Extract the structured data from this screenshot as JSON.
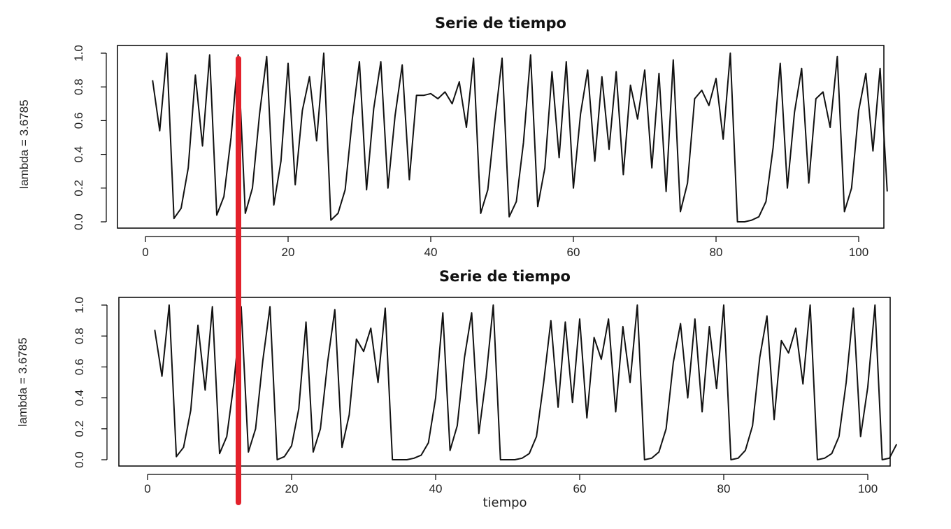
{
  "chart_data": [
    {
      "type": "line",
      "title": "Serie de tiempo",
      "xlabel": "",
      "ylabel": "lambda = 3.6785",
      "xlim": [
        1,
        104
      ],
      "ylim": [
        0,
        1
      ],
      "xticks": [
        0,
        20,
        40,
        60,
        80,
        100
      ],
      "xtick_labels": [
        "0",
        "20",
        "40",
        "60",
        "80",
        "100"
      ],
      "yticks": [
        0,
        0.2,
        0.4,
        0.6,
        0.8,
        1.0
      ],
      "ytick_labels": [
        "0.0",
        "0.2",
        "0.4",
        "0.6",
        "0.8",
        "1.0"
      ],
      "series": [
        {
          "x": [
            1,
            2,
            3,
            4,
            5,
            6,
            7,
            8,
            9,
            10,
            11,
            12,
            13,
            14,
            15,
            16,
            17,
            18,
            19,
            20,
            21,
            22,
            23,
            24,
            25,
            26,
            27,
            28,
            29,
            30,
            31,
            32,
            33,
            34,
            35,
            36,
            37,
            38,
            39,
            40,
            41,
            42,
            43,
            44,
            45,
            46,
            47,
            48,
            49,
            50,
            51,
            52,
            53,
            54,
            55,
            56,
            57,
            58,
            59,
            60,
            61,
            62,
            63,
            64,
            65,
            66,
            67,
            68,
            69,
            70,
            71,
            72,
            73,
            74,
            75,
            76,
            77,
            78,
            79,
            80,
            81,
            82,
            83,
            84,
            85,
            86,
            87,
            88,
            89,
            90,
            91,
            92,
            93,
            94,
            95,
            96,
            97,
            98,
            99,
            100,
            101,
            102,
            103,
            104
          ],
          "values": [
            0.84,
            0.54,
            1.0,
            0.02,
            0.08,
            0.32,
            0.87,
            0.45,
            0.99,
            0.04,
            0.15,
            0.5,
            0.99,
            0.05,
            0.2,
            0.64,
            0.98,
            0.1,
            0.36,
            0.94,
            0.22,
            0.66,
            0.86,
            0.48,
            1.0,
            0.01,
            0.05,
            0.19,
            0.61,
            0.95,
            0.19,
            0.67,
            0.95,
            0.2,
            0.63,
            0.93,
            0.25,
            0.75,
            0.75,
            0.76,
            0.73,
            0.77,
            0.7,
            0.83,
            0.56,
            0.97,
            0.05,
            0.19,
            0.6,
            0.97,
            0.03,
            0.12,
            0.47,
            0.99,
            0.09,
            0.32,
            0.89,
            0.38,
            0.95,
            0.2,
            0.64,
            0.9,
            0.36,
            0.86,
            0.43,
            0.89,
            0.28,
            0.81,
            0.61,
            0.9,
            0.32,
            0.88,
            0.18,
            0.96,
            0.06,
            0.23,
            0.73,
            0.78,
            0.69,
            0.85,
            0.49,
            1.0,
            0.0,
            0.0,
            0.01,
            0.03,
            0.12,
            0.44,
            0.94,
            0.2,
            0.65,
            0.91,
            0.23,
            0.73,
            0.77,
            0.56,
            0.98,
            0.06,
            0.2,
            0.66,
            0.88,
            0.42,
            0.91,
            0.18
          ]
        }
      ]
    },
    {
      "type": "line",
      "title": "Serie de tiempo",
      "xlabel": "tiempo",
      "ylabel": "lambda = 3.6785",
      "xlim": [
        1,
        104
      ],
      "ylim": [
        0,
        1
      ],
      "xticks": [
        0,
        20,
        40,
        60,
        80,
        100
      ],
      "xtick_labels": [
        "0",
        "20",
        "40",
        "60",
        "80",
        "100"
      ],
      "yticks": [
        0,
        0.2,
        0.4,
        0.6,
        0.8,
        1.0
      ],
      "ytick_labels": [
        "0.0",
        "0.2",
        "0.4",
        "0.6",
        "0.8",
        "1.0"
      ],
      "series": [
        {
          "x": [
            1,
            2,
            3,
            4,
            5,
            6,
            7,
            8,
            9,
            10,
            11,
            12,
            13,
            14,
            15,
            16,
            17,
            18,
            19,
            20,
            21,
            22,
            23,
            24,
            25,
            26,
            27,
            28,
            29,
            30,
            31,
            32,
            33,
            34,
            35,
            36,
            37,
            38,
            39,
            40,
            41,
            42,
            43,
            44,
            45,
            46,
            47,
            48,
            49,
            50,
            51,
            52,
            53,
            54,
            55,
            56,
            57,
            58,
            59,
            60,
            61,
            62,
            63,
            64,
            65,
            66,
            67,
            68,
            69,
            70,
            71,
            72,
            73,
            74,
            75,
            76,
            77,
            78,
            79,
            80,
            81,
            82,
            83,
            84,
            85,
            86,
            87,
            88,
            89,
            90,
            91,
            92,
            93,
            94,
            95,
            96,
            97,
            98,
            99,
            100,
            101,
            102,
            103,
            104
          ],
          "values": [
            0.84,
            0.54,
            1.0,
            0.02,
            0.08,
            0.32,
            0.87,
            0.45,
            0.99,
            0.04,
            0.15,
            0.5,
            0.99,
            0.05,
            0.2,
            0.64,
            0.99,
            0.0,
            0.02,
            0.09,
            0.33,
            0.89,
            0.05,
            0.2,
            0.63,
            0.97,
            0.08,
            0.29,
            0.78,
            0.7,
            0.85,
            0.5,
            0.98,
            0.0,
            0.0,
            0.0,
            0.01,
            0.03,
            0.11,
            0.4,
            0.95,
            0.06,
            0.22,
            0.66,
            0.95,
            0.17,
            0.53,
            1.0,
            0.0,
            0.0,
            0.0,
            0.01,
            0.04,
            0.15,
            0.5,
            0.9,
            0.34,
            0.89,
            0.37,
            0.91,
            0.27,
            0.79,
            0.65,
            0.91,
            0.31,
            0.86,
            0.5,
            1.0,
            0.0,
            0.01,
            0.05,
            0.2,
            0.63,
            0.88,
            0.4,
            0.91,
            0.31,
            0.86,
            0.46,
            1.0,
            0.0,
            0.01,
            0.06,
            0.22,
            0.66,
            0.93,
            0.26,
            0.77,
            0.69,
            0.85,
            0.49,
            1.0,
            0.0,
            0.01,
            0.04,
            0.15,
            0.5,
            0.98,
            0.15,
            0.47,
            1.0,
            0.0,
            0.01,
            0.1
          ]
        }
      ]
    }
  ]
}
